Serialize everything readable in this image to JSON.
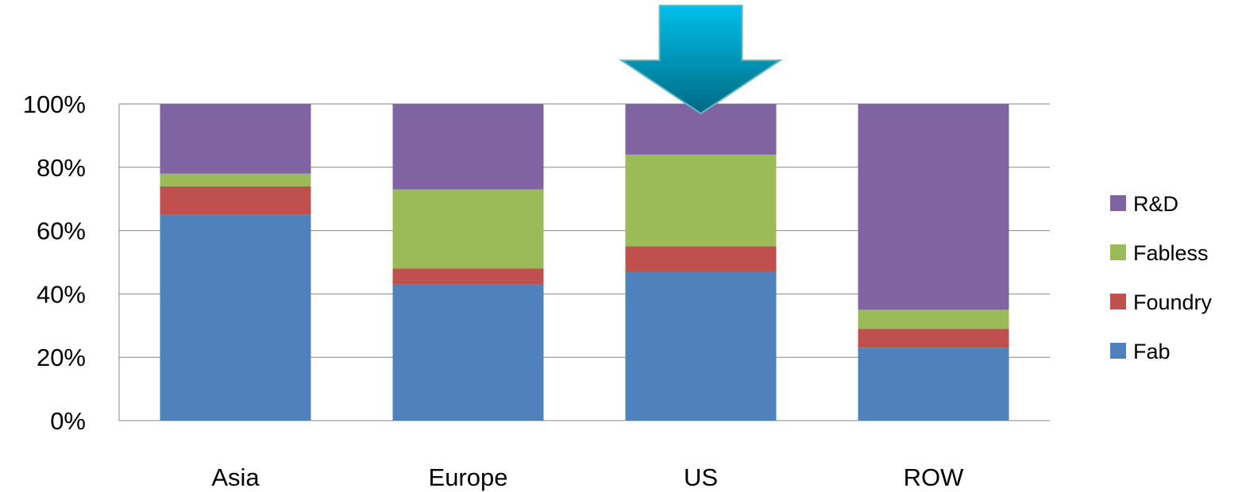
{
  "chart_data": {
    "type": "bar",
    "stacked": true,
    "categories": [
      "Asia",
      "Europe",
      "US",
      "ROW"
    ],
    "series": [
      {
        "name": "Fab",
        "values": [
          65,
          43,
          47,
          23
        ],
        "color": "#4F81BD"
      },
      {
        "name": "Foundry",
        "values": [
          9,
          5,
          8,
          6
        ],
        "color": "#C0504D"
      },
      {
        "name": "Fabless",
        "values": [
          4,
          25,
          29,
          6
        ],
        "color": "#9BBB59"
      },
      {
        "name": "R&D",
        "values": [
          22,
          27,
          16,
          65
        ],
        "color": "#8064A2"
      }
    ],
    "ylim": [
      0,
      100
    ],
    "y_ticks": [
      "0%",
      "20%",
      "40%",
      "60%",
      "80%",
      "100%"
    ],
    "grid": true,
    "legend_position": "right",
    "title": "",
    "xlabel": "",
    "ylabel": "",
    "annotation": {
      "type": "arrow",
      "direction": "down",
      "target_category": "US",
      "colors": {
        "top": "#00BFEA",
        "bottom": "#006A82"
      }
    }
  }
}
